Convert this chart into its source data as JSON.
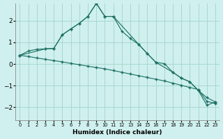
{
  "xlabel": "Humidex (Indice chaleur)",
  "bg_color": "#cff0ee",
  "grid_color": "#a8d8d0",
  "line_color": "#1a6e62",
  "xlim": [
    -0.5,
    23.5
  ],
  "ylim": [
    -2.6,
    2.8
  ],
  "xticks": [
    0,
    1,
    2,
    3,
    4,
    5,
    6,
    7,
    8,
    9,
    10,
    11,
    12,
    13,
    14,
    15,
    16,
    17,
    18,
    19,
    20,
    21,
    22,
    23
  ],
  "yticks": [
    -2,
    -1,
    0,
    1,
    2
  ],
  "curve1_x": [
    0,
    1,
    2,
    3,
    4,
    5,
    6,
    7,
    8,
    9,
    10,
    11,
    12,
    13,
    14,
    15,
    16,
    17,
    18,
    19,
    20,
    21,
    22,
    23
  ],
  "curve1_y": [
    0.4,
    0.6,
    0.68,
    0.7,
    0.72,
    1.35,
    1.62,
    1.88,
    2.2,
    2.8,
    2.2,
    2.2,
    1.52,
    1.18,
    0.9,
    0.48,
    0.08,
    0.02,
    -0.38,
    -0.65,
    -0.82,
    -1.22,
    -1.55,
    -1.75
  ],
  "curve2_x": [
    0,
    1,
    2,
    3,
    4,
    5,
    6,
    7,
    8,
    9,
    10,
    11,
    12,
    13,
    14,
    15,
    16,
    17,
    18,
    19,
    20,
    21,
    22,
    23
  ],
  "curve2_y": [
    0.4,
    0.35,
    0.28,
    0.22,
    0.16,
    0.1,
    0.03,
    -0.03,
    -0.1,
    -0.16,
    -0.22,
    -0.3,
    -0.38,
    -0.46,
    -0.54,
    -0.62,
    -0.7,
    -0.78,
    -0.88,
    -0.98,
    -1.08,
    -1.18,
    -1.72,
    -1.82
  ],
  "curve3_x": [
    0,
    3,
    4,
    5,
    6,
    7,
    8,
    9,
    10,
    11,
    14,
    15,
    16,
    18,
    19,
    20,
    21,
    22,
    23
  ],
  "curve3_y": [
    0.4,
    0.7,
    0.72,
    1.35,
    1.62,
    1.88,
    2.2,
    2.8,
    2.2,
    2.2,
    0.9,
    0.48,
    0.08,
    -0.38,
    -0.65,
    -0.82,
    -1.22,
    -1.9,
    -1.75
  ]
}
